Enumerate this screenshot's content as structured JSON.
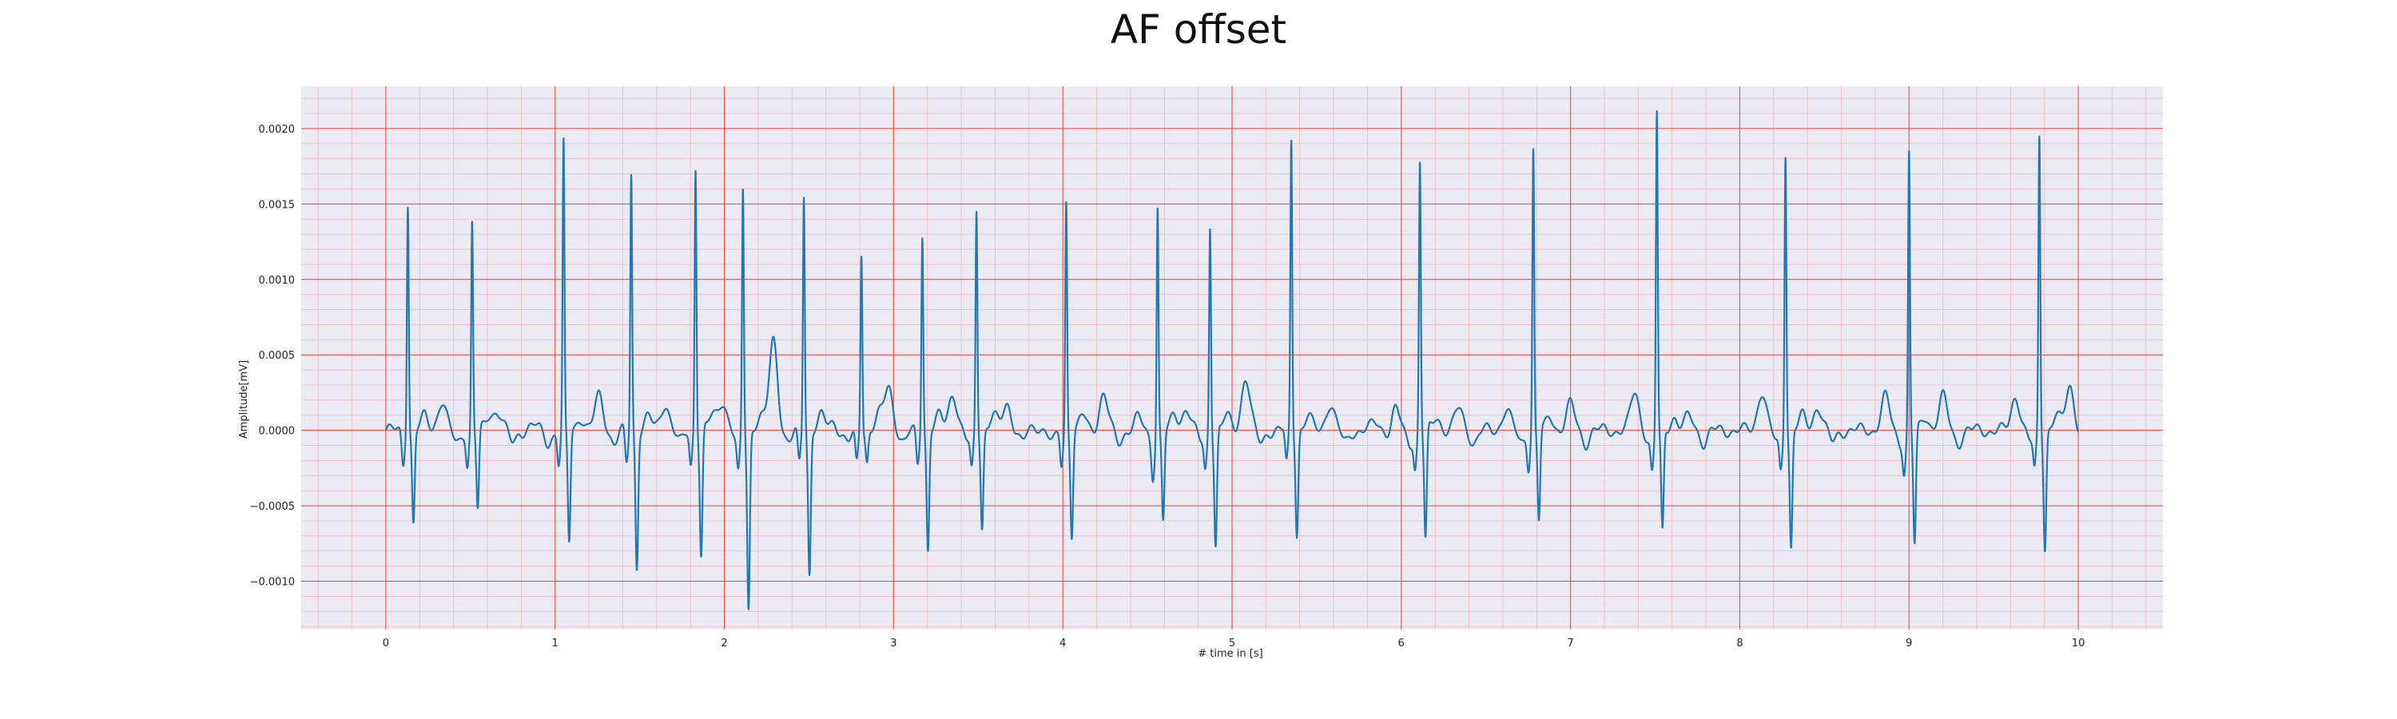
{
  "chart_data": {
    "type": "line",
    "title": "AF offset",
    "xlabel": "# time in [s]",
    "ylabel": "Amplitude[mV]",
    "xlim": [
      -0.5,
      10.5
    ],
    "ylim": [
      -0.00132,
      0.00228
    ],
    "xticks": [
      0,
      1,
      2,
      3,
      4,
      5,
      6,
      7,
      8,
      9,
      10
    ],
    "xtick_labels": [
      "0",
      "1",
      "2",
      "3",
      "4",
      "5",
      "6",
      "7",
      "8",
      "9",
      "10"
    ],
    "yticks": [
      -0.001,
      -0.0005,
      0.0,
      0.0005,
      0.001,
      0.0015,
      0.002
    ],
    "ytick_labels": [
      "−0.0010",
      "−0.0005",
      "0.0000",
      "0.0005",
      "0.0010",
      "0.0015",
      "0.0020"
    ],
    "x_minor_step": 0.2,
    "y_minor_step": 0.0001,
    "grid": true,
    "series": [
      {
        "color": "#1f77b4",
        "x_start": 0.0,
        "x_end": 10.0,
        "baseline": 0.0,
        "beats": [
          {
            "t": 0.13,
            "r": 0.00152,
            "s": -0.00062
          },
          {
            "t": 0.51,
            "r": 0.00137,
            "s": -0.00053
          },
          {
            "t": 1.05,
            "r": 0.00189,
            "s": -0.00074
          },
          {
            "t": 1.45,
            "r": 0.0017,
            "s": -0.0009
          },
          {
            "t": 1.83,
            "r": 0.00175,
            "s": -0.00083
          },
          {
            "t": 2.11,
            "r": 0.00162,
            "s": -0.00117
          },
          {
            "t": 2.47,
            "r": 0.00157,
            "s": -0.00095
          },
          {
            "t": 2.81,
            "r": 0.00118,
            "s": -0.0002
          },
          {
            "t": 3.17,
            "r": 0.00131,
            "s": -0.00079
          },
          {
            "t": 3.49,
            "r": 0.00147,
            "s": -0.00063
          },
          {
            "t": 4.02,
            "r": 0.00152,
            "s": -0.00068
          },
          {
            "t": 4.56,
            "r": 0.00152,
            "s": -0.0006
          },
          {
            "t": 4.87,
            "r": 0.00137,
            "s": -0.00075
          },
          {
            "t": 5.35,
            "r": 0.00192,
            "s": -0.00068
          },
          {
            "t": 6.11,
            "r": 0.00178,
            "s": -0.00073
          },
          {
            "t": 6.78,
            "r": 0.00186,
            "s": -0.0006
          },
          {
            "t": 7.51,
            "r": 0.00212,
            "s": -0.00068
          },
          {
            "t": 8.27,
            "r": 0.00186,
            "s": -0.00078
          },
          {
            "t": 9.0,
            "r": 0.00184,
            "s": -0.00076
          },
          {
            "t": 9.77,
            "r": 0.00196,
            "s": -0.00077
          }
        ],
        "waves": [
          {
            "t": 0.33,
            "a": 0.00019
          },
          {
            "t": 0.66,
            "a": 0.00012
          },
          {
            "t": 0.87,
            "a": 3e-05
          },
          {
            "t": 1.26,
            "a": 0.00023
          },
          {
            "t": 1.65,
            "a": 0.00018
          },
          {
            "t": 1.99,
            "a": 0.0002
          },
          {
            "t": 2.29,
            "a": 0.0006
          },
          {
            "t": 2.64,
            "a": 5e-05
          },
          {
            "t": 2.97,
            "a": 0.00029
          },
          {
            "t": 3.35,
            "a": 0.00025
          },
          {
            "t": 3.67,
            "a": 0.00018
          },
          {
            "t": 3.85,
            "a": 3e-05
          },
          {
            "t": 4.24,
            "a": 0.00024
          },
          {
            "t": 4.44,
            "a": 8e-05
          },
          {
            "t": 4.73,
            "a": 0.00015
          },
          {
            "t": 5.08,
            "a": 0.00035
          },
          {
            "t": 5.58,
            "a": 0.00018
          },
          {
            "t": 5.85,
            "a": 5e-05
          },
          {
            "t": 5.96,
            "a": 0.00018
          },
          {
            "t": 6.34,
            "a": 0.00014
          },
          {
            "t": 6.62,
            "a": 0.00014
          },
          {
            "t": 7.0,
            "a": 0.00017
          },
          {
            "t": 7.38,
            "a": 0.00025
          },
          {
            "t": 7.7,
            "a": 9e-05
          },
          {
            "t": 8.13,
            "a": 0.00026
          },
          {
            "t": 8.46,
            "a": 0.00016
          },
          {
            "t": 8.86,
            "a": 0.00022
          },
          {
            "t": 9.2,
            "a": 0.00022
          },
          {
            "t": 9.63,
            "a": 0.00023
          },
          {
            "t": 9.95,
            "a": 0.0003
          }
        ]
      }
    ]
  }
}
